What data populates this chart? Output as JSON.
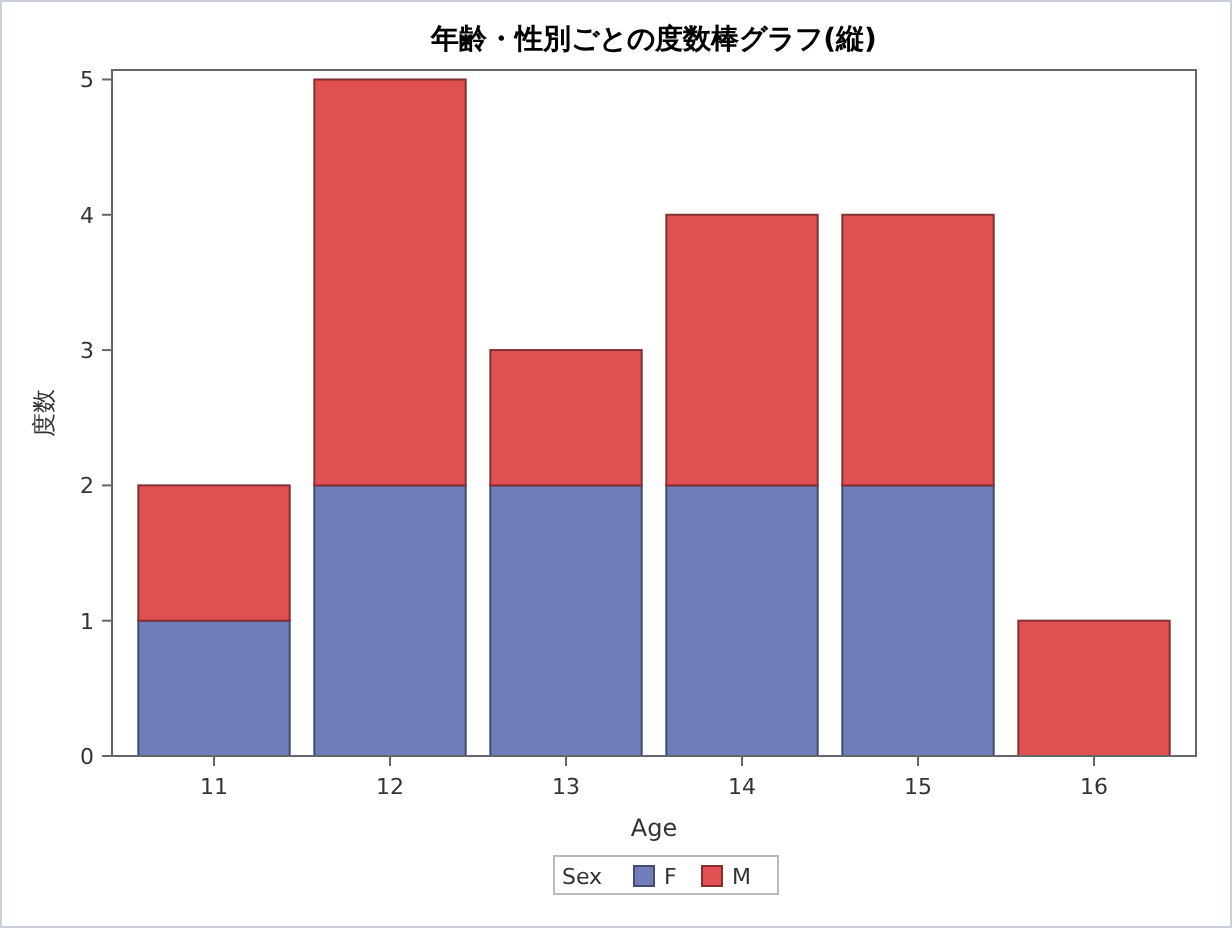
{
  "chart_data": {
    "type": "bar",
    "title": "年齢・性別ごとの度数棒グラフ(縦)",
    "xlabel": "Age",
    "ylabel": "度数",
    "legend_title": "Sex",
    "categories": [
      "11",
      "12",
      "13",
      "14",
      "15",
      "16"
    ],
    "series": [
      {
        "name": "F",
        "color": "#6f7dbb",
        "values": [
          1,
          2,
          2,
          2,
          2,
          0
        ]
      },
      {
        "name": "M",
        "color": "#e04f52",
        "values": [
          1,
          3,
          1,
          2,
          2,
          1
        ]
      }
    ],
    "stacked": true,
    "ylim": [
      0,
      5.07
    ],
    "yticks": [
      0,
      1,
      2,
      3,
      4,
      5
    ],
    "legend": "bottom",
    "grid": false
  }
}
